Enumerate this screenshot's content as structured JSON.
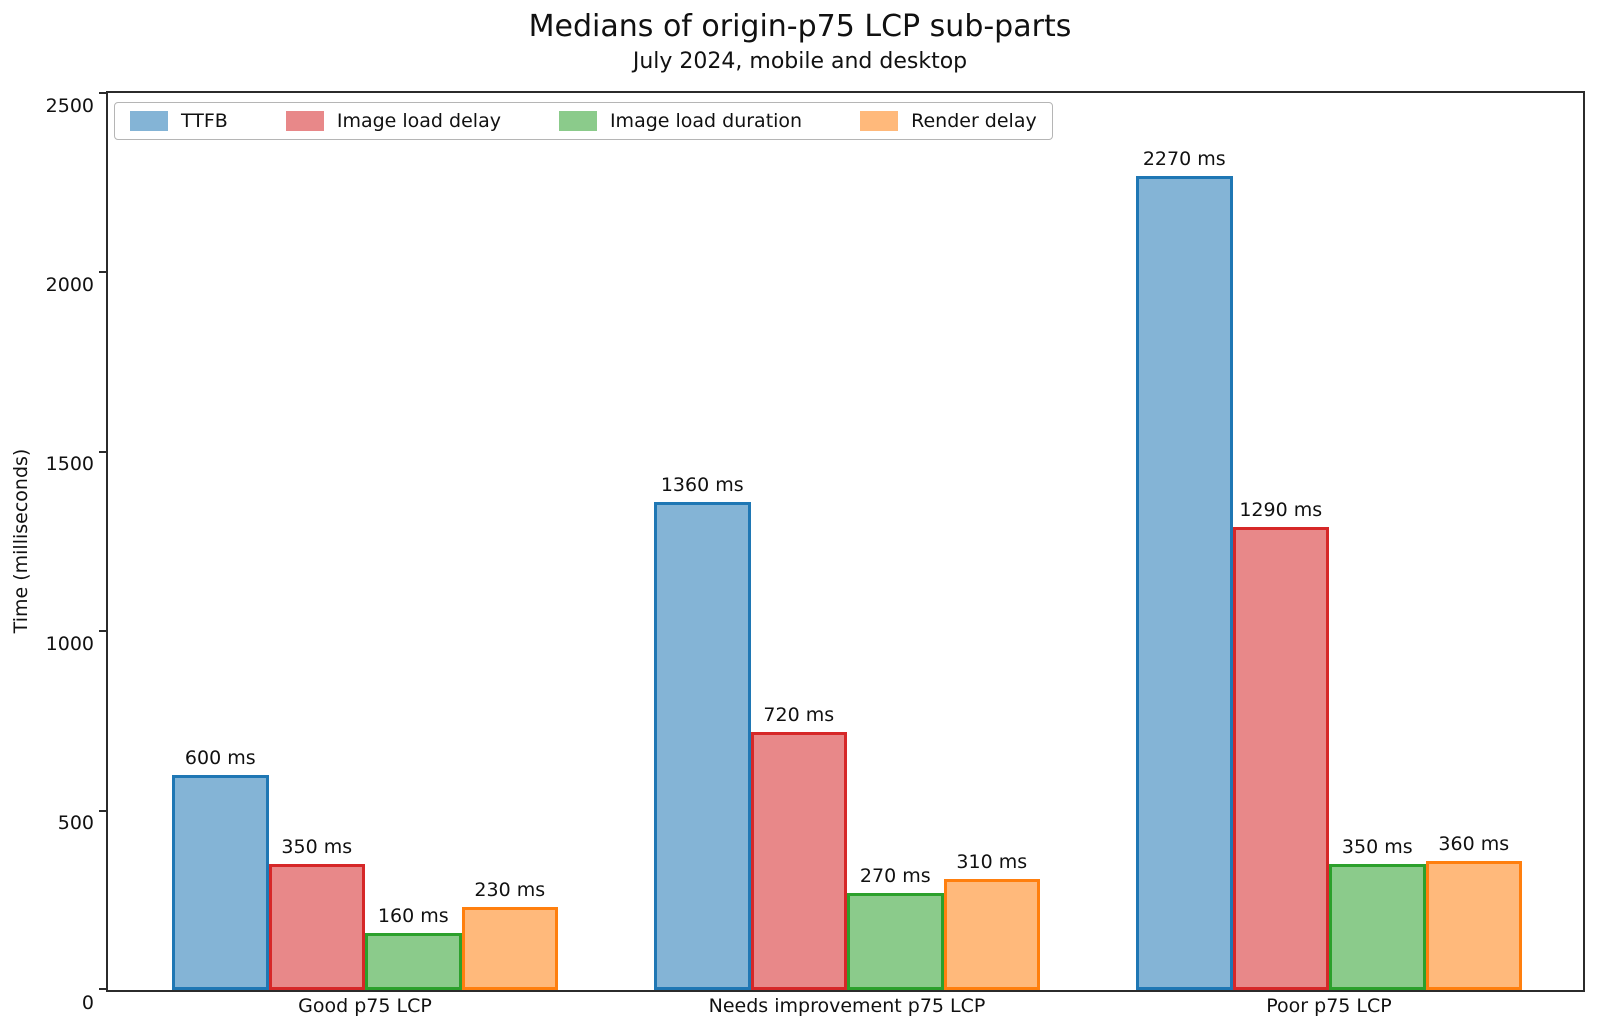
{
  "title": "Medians of origin-p75 LCP sub-parts",
  "subtitle": "July 2024, mobile and desktop",
  "chart_data": {
    "type": "bar",
    "categories": [
      "Good p75 LCP",
      "Needs improvement p75 LCP",
      "Poor p75 LCP"
    ],
    "series": [
      {
        "name": "TTFB",
        "color": "#1f77b4",
        "fill": "rgba(31,119,180,0.55)",
        "values": [
          600,
          1360,
          2270
        ]
      },
      {
        "name": "Image load delay",
        "color": "#d62728",
        "fill": "rgba(214,39,40,0.55)",
        "values": [
          350,
          720,
          1290
        ]
      },
      {
        "name": "Image load duration",
        "color": "#2ca02c",
        "fill": "rgba(44,160,44,0.55)",
        "values": [
          160,
          270,
          350
        ]
      },
      {
        "name": "Render delay",
        "color": "#ff7f0e",
        "fill": "rgba(255,127,14,0.55)",
        "values": [
          230,
          310,
          360
        ]
      }
    ],
    "value_labels": [
      [
        "600 ms",
        "1360 ms",
        "2270 ms"
      ],
      [
        "350 ms",
        "720 ms",
        "1290 ms"
      ],
      [
        "160 ms",
        "270 ms",
        "350 ms"
      ],
      [
        "230 ms",
        "310 ms",
        "360 ms"
      ]
    ],
    "ylabel": "Time (milliseconds)",
    "ylim": [
      0,
      2500
    ],
    "yticks": [
      "0",
      "500",
      "1000",
      "1500",
      "2000",
      "2500"
    ],
    "grid": false,
    "legend_position": "top-left",
    "axis_color": "#2b2b2b"
  }
}
